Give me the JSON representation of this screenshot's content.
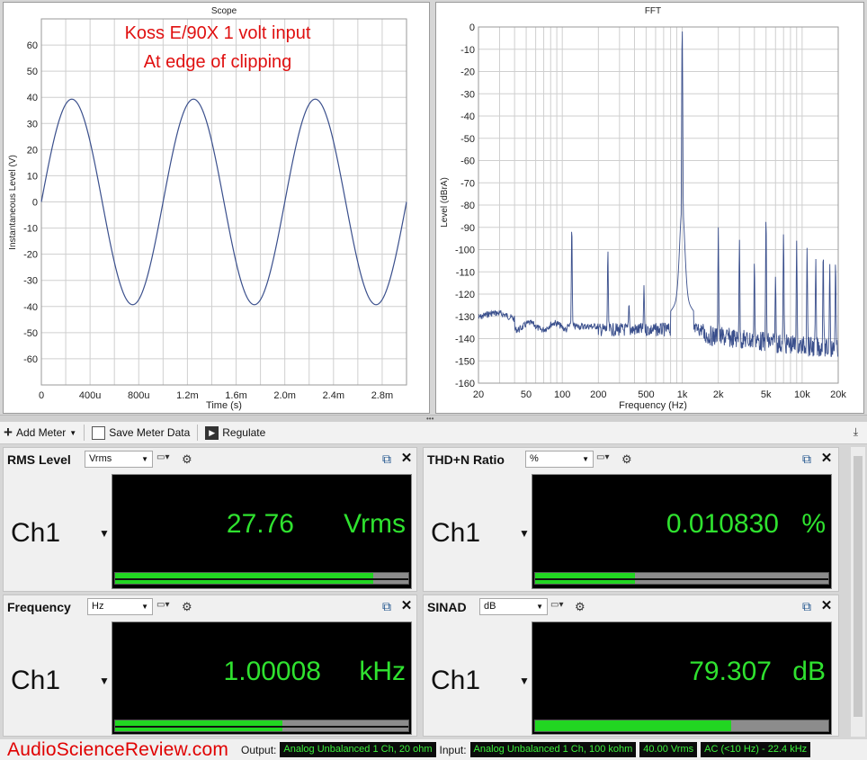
{
  "scope": {
    "title": "Scope",
    "annotation_line1": "Koss E/90X 1 volt input",
    "annotation_line2": "At edge of clipping",
    "xlabel": "Time (s)",
    "ylabel": "Instantaneous Level (V)",
    "x_ticks": [
      "0",
      "400u",
      "800u",
      "1.2m",
      "1.6m",
      "2.0m",
      "2.4m",
      "2.8m"
    ],
    "y_ticks": [
      "60",
      "50",
      "40",
      "30",
      "20",
      "10",
      "0",
      "-10",
      "-20",
      "-30",
      "-40",
      "-50",
      "-60"
    ]
  },
  "fft": {
    "title": "FFT",
    "xlabel": "Frequency (Hz)",
    "ylabel": "Level (dBrA)",
    "x_ticks": [
      "20",
      "50",
      "100",
      "200",
      "500",
      "1k",
      "2k",
      "5k",
      "10k",
      "20k"
    ],
    "y_ticks": [
      "0",
      "-10",
      "-20",
      "-30",
      "-40",
      "-50",
      "-60",
      "-70",
      "-80",
      "-90",
      "-100",
      "-110",
      "-120",
      "-130",
      "-140",
      "-150",
      "-160"
    ]
  },
  "chart_data": [
    {
      "type": "line",
      "title": "Scope",
      "xlabel": "Time (s)",
      "ylabel": "Instantaneous Level (V)",
      "xlim": [
        0,
        0.003
      ],
      "ylim": [
        -70,
        70
      ],
      "grid": true,
      "series": [
        {
          "frequency_hz": 1000,
          "amplitude_v": 39.3,
          "start_phase": "rising from 0 at t=0"
        }
      ]
    },
    {
      "type": "line",
      "title": "FFT",
      "xlabel": "Frequency (Hz)",
      "ylabel": "Level (dBrA)",
      "x_scale": "log",
      "xlim": [
        20,
        20000
      ],
      "ylim": [
        -160,
        0
      ],
      "grid": true,
      "noise_floor_db": -133,
      "peaks": [
        {
          "freq": 120,
          "level": -88
        },
        {
          "freq": 240,
          "level": -100
        },
        {
          "freq": 360,
          "level": -124
        },
        {
          "freq": 480,
          "level": -116
        },
        {
          "freq": 1000,
          "level": 0
        },
        {
          "freq": 2000,
          "level": -90
        },
        {
          "freq": 3000,
          "level": -95
        },
        {
          "freq": 4000,
          "level": -105
        },
        {
          "freq": 5000,
          "level": -84
        },
        {
          "freq": 6000,
          "level": -112
        },
        {
          "freq": 7000,
          "level": -92
        },
        {
          "freq": 9000,
          "level": -96
        },
        {
          "freq": 11000,
          "level": -99
        },
        {
          "freq": 13000,
          "level": -104
        },
        {
          "freq": 15000,
          "level": -100
        },
        {
          "freq": 17000,
          "level": -106
        },
        {
          "freq": 19000,
          "level": -105
        }
      ]
    }
  ],
  "toolbar": {
    "add_meter": "Add Meter",
    "save_meter_data": "Save Meter Data",
    "regulate": "Regulate"
  },
  "meters": {
    "rms": {
      "title": "RMS Level",
      "unit": "Vrms",
      "channel": "Ch1",
      "value": "27.76",
      "value_unit": "Vrms",
      "bar_fraction": 0.88
    },
    "thdn": {
      "title": "THD+N Ratio",
      "unit": "%",
      "channel": "Ch1",
      "value": "0.010830",
      "value_unit": "%",
      "bar_fraction": 0.34
    },
    "freq": {
      "title": "Frequency",
      "unit": "Hz",
      "channel": "Ch1",
      "value": "1.00008",
      "value_unit": "kHz",
      "bar_fraction": 0.57
    },
    "sinad": {
      "title": "SINAD",
      "unit": "dB",
      "channel": "Ch1",
      "value": "79.307",
      "value_unit": "dB",
      "bar_fraction": 0.67
    }
  },
  "status": {
    "brand": "AudioScienceReview.com",
    "output_label": "Output:",
    "output_value": "Analog Unbalanced 1 Ch, 20 ohm",
    "input_label": "Input:",
    "input_value": "Analog Unbalanced 1 Ch, 100 kohm",
    "range": "40.00 Vrms",
    "coupling": "AC (<10 Hz) - 22.4 kHz"
  },
  "colors": {
    "trace": "#3a4f8c",
    "annotation": "#e01010",
    "reading": "#2fe22f",
    "bar": "#22d622"
  }
}
